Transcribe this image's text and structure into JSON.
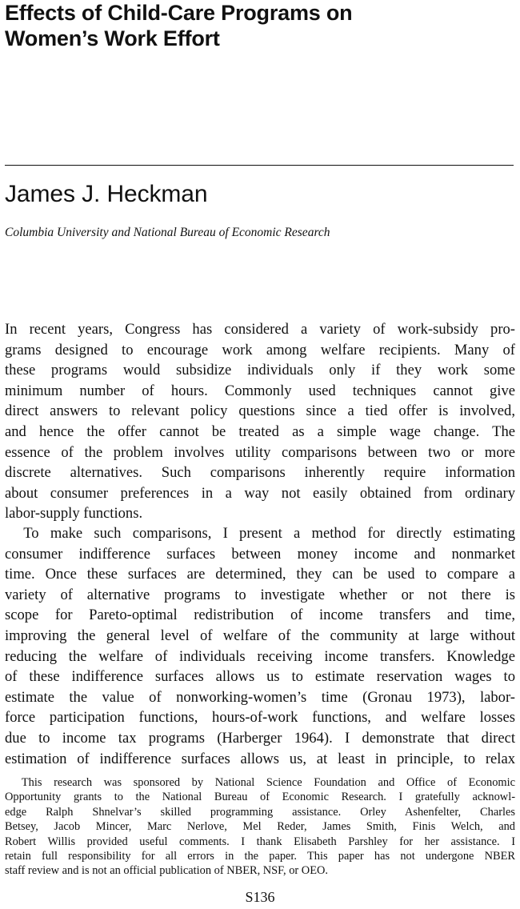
{
  "title_lines": [
    "Effects of Child-Care Programs on",
    "Women’s Work Effort"
  ],
  "author": "James J. Heckman",
  "affiliation": "Columbia University and National Bureau of Economic Research",
  "paragraphs": [
    [
      "In recent years, Congress has considered a variety of work-subsidy pro-",
      "grams designed to encourage work among welfare recipients. Many of",
      "these programs would subsidize individuals only if they work some",
      "minimum number of hours. Commonly used techniques cannot give",
      "direct answers to relevant policy questions since a tied offer is involved,",
      "and hence the offer cannot be treated as a simple wage change. The",
      "essence of the problem involves utility comparisons between two or more",
      "discrete alternatives. Such comparisons inherently require information",
      "about consumer preferences in a way not easily obtained from ordinary",
      "labor-supply functions."
    ],
    [
      "To make such comparisons, I present a method for directly estimating",
      "consumer indifference surfaces between money income and nonmarket",
      "time. Once these surfaces are determined, they can be used to compare a",
      "variety of alternative programs to investigate whether or not there is",
      "scope for Pareto-optimal redistribution of income transfers and time,",
      "improving the general level of welfare of the community at large without",
      "reducing the welfare of individuals receiving income transfers. Knowledge",
      "of these indifference surfaces allows us to estimate reservation wages to",
      "estimate the value of nonworking-women’s time (Gronau 1973), labor-",
      "force participation functions, hours-of-work functions, and welfare losses",
      "due to income tax programs (Harberger 1964). I demonstrate that direct",
      "estimation of indifference surfaces allows us, at least in principle, to relax"
    ]
  ],
  "footnote_lines": [
    "This research was sponsored by National Science Foundation and Office of Economic",
    "Opportunity grants to the National Bureau of Economic Research. I gratefully acknowl-",
    "edge Ralph Shnelvar’s skilled programming assistance. Orley Ashenfelter, Charles",
    "Betsey, Jacob Mincer, Marc Nerlove, Mel Reder, James Smith, Finis Welch, and",
    "Robert Willis provided useful comments. I thank Elisabeth Parshley for her assistance. I",
    "retain full responsibility for all errors in the paper. This paper has not undergone NBER",
    "staff review and is not an official publication of NBER, NSF, or OEO."
  ],
  "page_number": "S136"
}
